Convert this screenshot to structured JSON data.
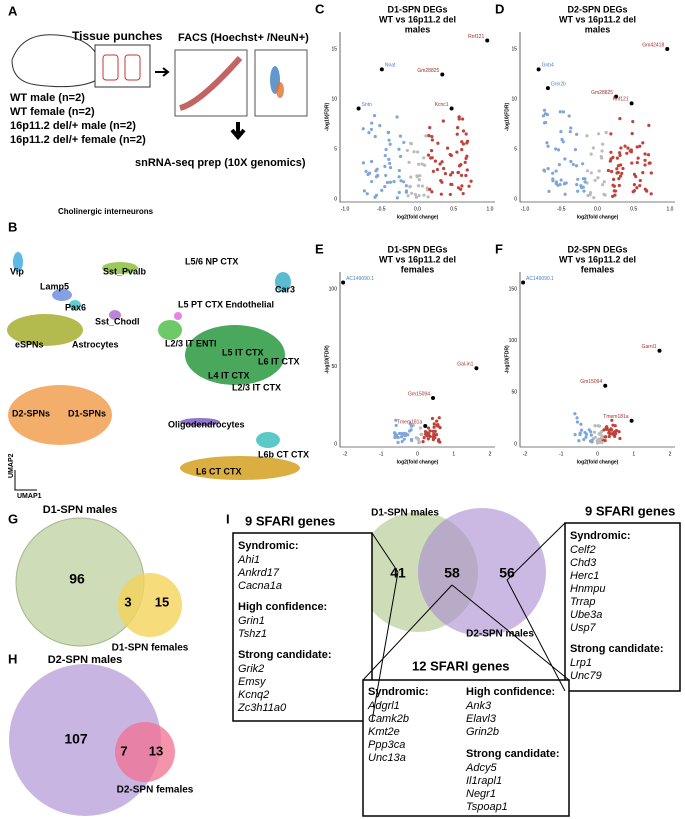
{
  "panel_a": {
    "letter": "A",
    "tissue": "Tissue punches",
    "facs": "FACS (Hoechst+ /NeuN+)",
    "groups": [
      "WT male (n=2)",
      "WT female (n=2)",
      "16p11.2 del/+ male (n=2)",
      "16p11.2 del/+ female (n=2)"
    ],
    "prep": "snRNA-seq prep (10X genomics)"
  },
  "panel_b": {
    "letter": "B",
    "clusters": [
      "Cholinergic interneurons",
      "Vip",
      "Sst_Pvalb",
      "L5/6 NP CTX",
      "Lamp5",
      "Pax6",
      "Car3",
      "Sst_Chodl",
      "L5 PT CTX Endothelial",
      "eSPNs",
      "Astrocytes",
      "L2/3 IT ENTl",
      "L5 IT CTX",
      "L6 IT CTX",
      "L4 IT CTX",
      "L2/3 IT CTX",
      "D2-SPNs",
      "D1-SPNs",
      "Oligodendrocytes",
      "L6b CT CTX",
      "L6 CT CTX"
    ],
    "axis_x": "UMAP1",
    "axis_y": "UMAP2"
  },
  "volcanoes": [
    {
      "letter": "C",
      "title": "D1-SPN DEGs",
      "subtitle": "WT vs 16p11.2 del",
      "group": "males",
      "xlabel": "log2(fold change)",
      "ylabel": "-log10(FDR)",
      "xticks": [
        "-1.0",
        "-0.5",
        "0.0",
        "0.5",
        "1.0"
      ],
      "yticks": [
        "0",
        "5",
        "10",
        "15"
      ],
      "genes": [
        "Nnat",
        "Sntn",
        "Gm28825",
        "Kcnc1",
        "Rnf121"
      ]
    },
    {
      "letter": "D",
      "title": "D2-SPN DEGs",
      "subtitle": "WT vs 16p11.2 del",
      "group": "males",
      "xlabel": "log2(fold change)",
      "ylabel": "-log10(FDR)",
      "xticks": [
        "-1.0",
        "-0.5",
        "0.0",
        "0.5",
        "1.0"
      ],
      "yticks": [
        "0",
        "5",
        "10",
        "15"
      ],
      "genes": [
        "Gnb4",
        "Grin2b",
        "Gm28825",
        "Rnf121",
        "Gm42418"
      ]
    },
    {
      "letter": "E",
      "title": "D1-SPN DEGs",
      "subtitle": "WT vs 16p11.2 del",
      "group": "females",
      "xlabel": "log2(fold change)",
      "ylabel": "-log10(FDR)",
      "xticks": [
        "-2",
        "-1",
        "0",
        "1",
        "2"
      ],
      "yticks": [
        "0",
        "50",
        "100"
      ],
      "genes": [
        "AC149090.1",
        "Gm15094",
        "Gal-in1",
        "Tmem181a"
      ]
    },
    {
      "letter": "F",
      "title": "D2-SPN DEGs",
      "subtitle": "WT vs 16p11.2 del",
      "group": "females",
      "xlabel": "log2(fold change)",
      "ylabel": "-log10(FDR)",
      "xticks": [
        "-2",
        "-1",
        "0",
        "1",
        "2"
      ],
      "yticks": [
        "0",
        "50",
        "100",
        "150"
      ],
      "genes": [
        "AC149090.1",
        "Gm15094",
        "Garnl1",
        "Tmem181a"
      ]
    }
  ],
  "venn_g": {
    "letter": "G",
    "set_a": "D1-SPN males",
    "set_b": "D1-SPN females",
    "only_a": "96",
    "both": "3",
    "only_b": "15"
  },
  "venn_h": {
    "letter": "H",
    "set_a": "D2-SPN males",
    "set_b": "D2-SPN females",
    "only_a": "107",
    "both": "7",
    "only_b": "13"
  },
  "panel_i": {
    "letter": "I",
    "set_a": "D1-SPN males",
    "set_b": "D2-SPN males",
    "only_a": "41",
    "both": "58",
    "only_b": "56",
    "left": {
      "title": "9 SFARI genes",
      "groups": [
        {
          "heading": "Syndromic:",
          "genes": [
            "Ahi1",
            "Ankrd17",
            "Cacna1a"
          ]
        },
        {
          "heading": "High confidence:",
          "genes": [
            "Grin1",
            "Tshz1"
          ]
        },
        {
          "heading": "Strong candidate:",
          "genes": [
            "Grik2",
            "Emsy",
            "Kcnq2",
            "Zc3h11a0"
          ]
        }
      ]
    },
    "right": {
      "title": "9 SFARI genes",
      "groups": [
        {
          "heading": "Syndromic:",
          "genes": [
            "Celf2",
            "Chd3",
            "Herc1",
            "Hnmpu",
            "Trrap",
            "Ube3a",
            "Usp7"
          ]
        },
        {
          "heading": "Strong candidate:",
          "genes": [
            "Lrp1",
            "Unc79"
          ]
        }
      ]
    },
    "middle": {
      "title": "12 SFARI genes",
      "groups": [
        {
          "heading": "Syndromic:",
          "genes": [
            "Adgrl1",
            "Camk2b",
            "Kmt2e",
            "Ppp3ca",
            "Unc13a"
          ]
        },
        {
          "heading": "High confidence:",
          "genes": [
            "Ank3",
            "Elavl3",
            "Grin2b"
          ]
        },
        {
          "heading": "Strong candidate:",
          "genes": [
            "Adcy5",
            "Il1rapl1",
            "Negr1",
            "Tspoap1"
          ]
        }
      ]
    }
  }
}
